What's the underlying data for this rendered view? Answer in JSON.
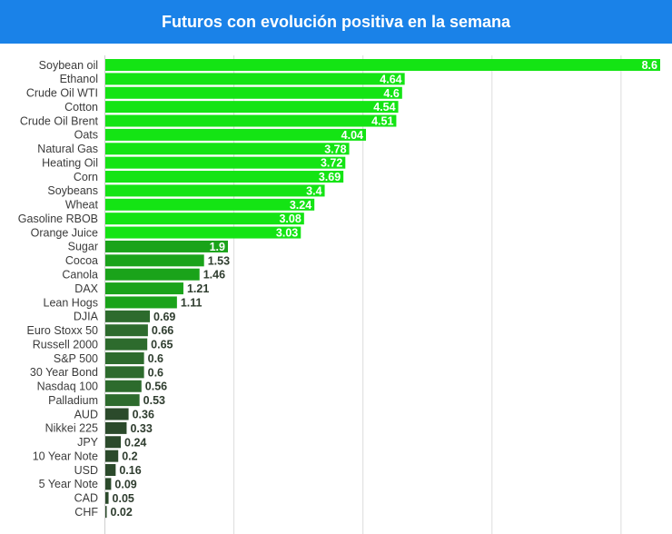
{
  "header": {
    "title": "Futuros con evolución positiva en la semana"
  },
  "colors": {
    "header_bg": "#1a82e8",
    "bright_green": "#14e414",
    "mid_green": "#1aa31a",
    "dark_green": "#2d6b2d",
    "darkest_green": "#2b4a2b",
    "grid": "#dcdcdc"
  },
  "chart_data": {
    "type": "bar",
    "orientation": "horizontal",
    "title": "Futuros con evolución positiva en la semana",
    "xlabel": "",
    "ylabel": "",
    "xlim": [
      0,
      8.6
    ],
    "grid": true,
    "categories": [
      "Soybean oil",
      "Ethanol",
      "Crude Oil WTI",
      "Cotton",
      "Crude Oil Brent",
      "Oats",
      "Natural Gas",
      "Heating Oil",
      "Corn",
      "Soybeans",
      "Wheat",
      "Gasoline RBOB",
      "Orange Juice",
      "Sugar",
      "Cocoa",
      "Canola",
      "DAX",
      "Lean Hogs",
      "DJIA",
      "Euro Stoxx 50",
      "Russell 2000",
      "S&P 500",
      "30 Year Bond",
      "Nasdaq 100",
      "Palladium",
      "AUD",
      "Nikkei 225",
      "JPY",
      "10 Year Note",
      "USD",
      "5 Year Note",
      "CAD",
      "CHF"
    ],
    "values": [
      8.6,
      4.64,
      4.6,
      4.54,
      4.51,
      4.04,
      3.78,
      3.72,
      3.69,
      3.4,
      3.24,
      3.08,
      3.03,
      1.9,
      1.53,
      1.46,
      1.21,
      1.11,
      0.69,
      0.66,
      0.65,
      0.6,
      0.6,
      0.56,
      0.53,
      0.36,
      0.33,
      0.24,
      0.2,
      0.16,
      0.09,
      0.05,
      0.02
    ],
    "value_labels": [
      "8.6",
      "4.64",
      "4.6",
      "4.54",
      "4.51",
      "4.04",
      "3.78",
      "3.72",
      "3.69",
      "3.4",
      "3.24",
      "3.08",
      "3.03",
      "1.9",
      "1.53",
      "1.46",
      "1.21",
      "1.11",
      "0.69",
      "0.66",
      "0.65",
      "0.6",
      "0.6",
      "0.56",
      "0.53",
      "0.36",
      "0.33",
      "0.24",
      "0.2",
      "0.16",
      "0.09",
      "0.05",
      "0.02"
    ]
  }
}
